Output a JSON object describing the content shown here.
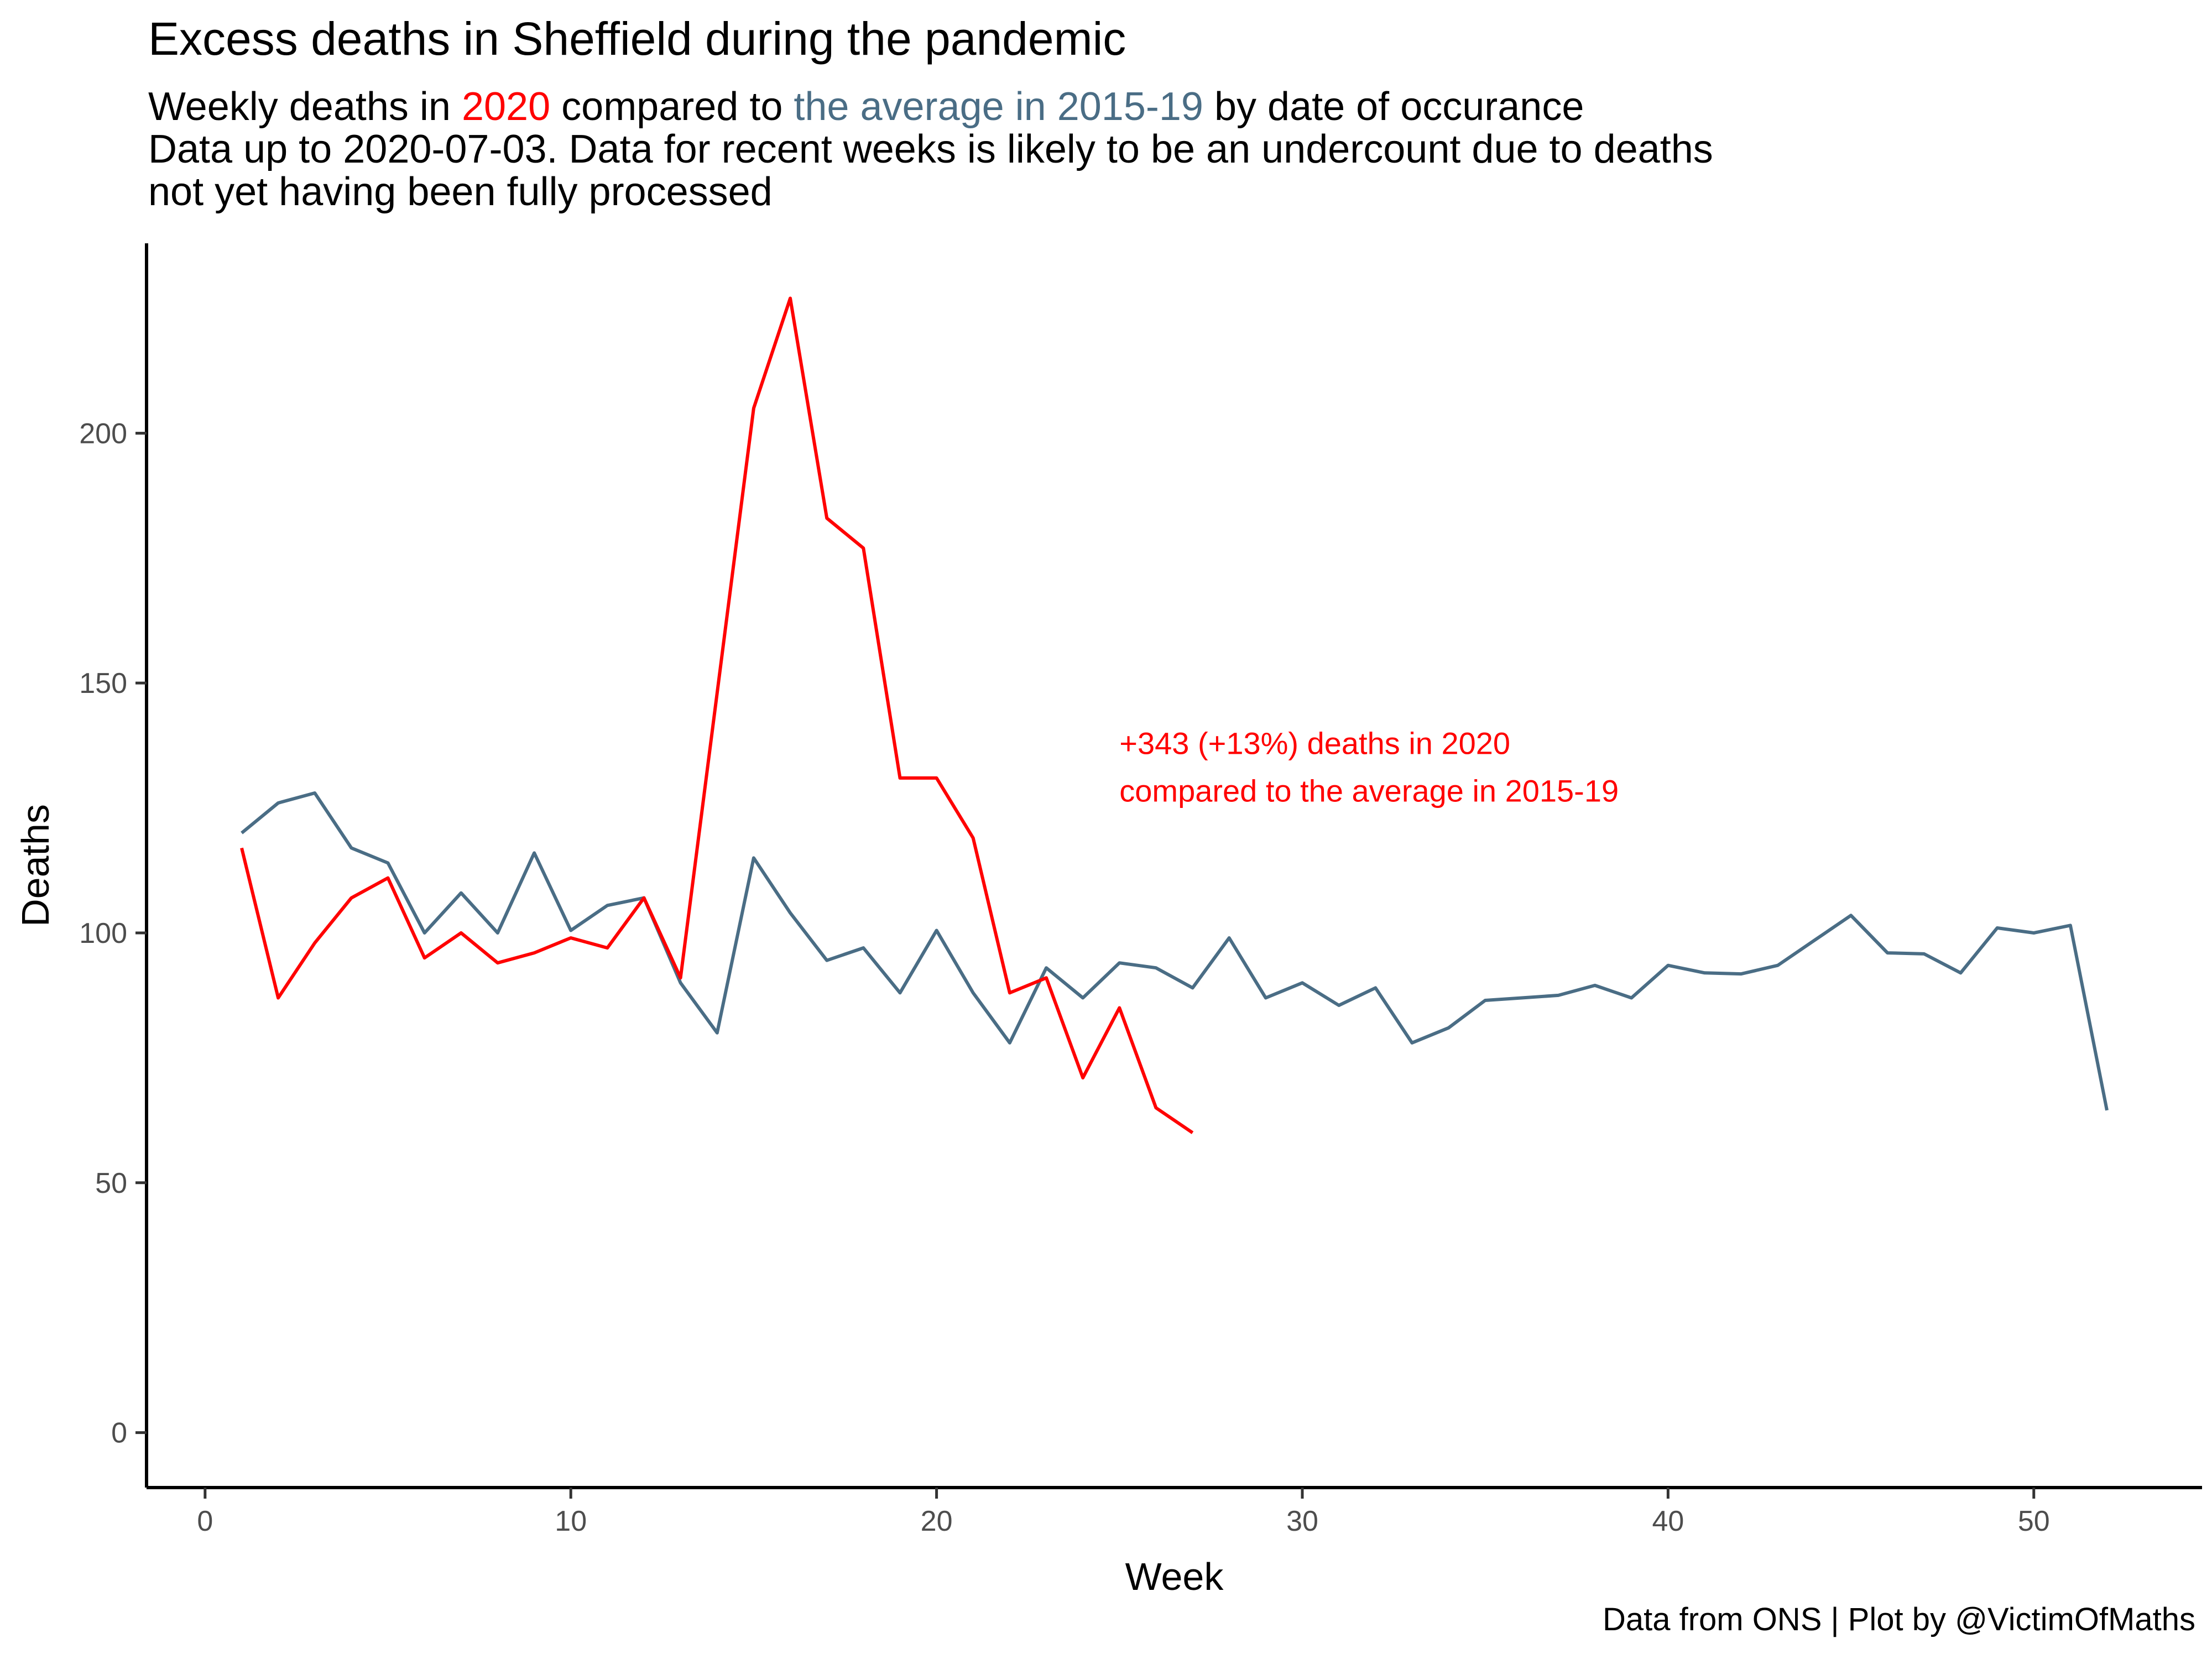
{
  "title": "Excess deaths in Sheffield during the pandemic",
  "subtitle": {
    "line1_prefix": "Weekly deaths in ",
    "line1_red": "2020",
    "line1_mid": " compared to ",
    "line1_blue": "the average in 2015-19",
    "line1_suffix": " by date of occurance",
    "line2": "Data up to 2020-07-03. Data for recent weeks is likely to be an undercount due to deaths",
    "line3": "not yet having been fully processed"
  },
  "caption": "Data from ONS | Plot by @VictimOfMaths",
  "colors": {
    "series_2020": "#ff0000",
    "series_average": "#4a6d85"
  },
  "chart_data": {
    "type": "line",
    "title": "Excess deaths in Sheffield during the pandemic",
    "xlabel": "Week",
    "ylabel": "Deaths",
    "xlim": [
      -1.6,
      54.6
    ],
    "ylim": [
      -11,
      238
    ],
    "x_ticks": [
      0,
      10,
      20,
      30,
      40,
      50
    ],
    "y_ticks": [
      0,
      50,
      100,
      150,
      200
    ],
    "grid": false,
    "annotation": {
      "line1": "+343 (+13%) deaths in 2020",
      "line2": "compared to the average in 2015-19",
      "x": 25,
      "y_line1": 138,
      "y_line2": 128.5
    },
    "series": [
      {
        "name": "the average in 2015-19",
        "color": "#4a6d85",
        "x": [
          1,
          2,
          3,
          4,
          5,
          6,
          7,
          8,
          9,
          10,
          11,
          12,
          13,
          14,
          15,
          16,
          17,
          18,
          19,
          20,
          21,
          22,
          23,
          24,
          25,
          26,
          27,
          28,
          29,
          30,
          31,
          32,
          33,
          34,
          35,
          36,
          37,
          38,
          39,
          40,
          41,
          42,
          43,
          44,
          45,
          46,
          47,
          48,
          49,
          50,
          51,
          52
        ],
        "values": [
          120,
          126,
          128,
          117,
          114,
          100,
          108,
          100,
          116,
          100.5,
          105.5,
          107,
          90,
          80,
          115,
          104,
          94.5,
          97,
          88,
          100.5,
          88,
          78,
          93,
          87,
          94,
          93,
          89,
          99,
          87,
          90,
          85.5,
          89,
          78,
          81,
          86.5,
          87,
          87.5,
          89.5,
          87,
          93.5,
          92,
          91.8,
          93.5,
          98.5,
          103.5,
          96,
          95.8,
          92,
          101,
          100,
          101.5,
          64.5
        ]
      },
      {
        "name": "2020",
        "color": "#ff0000",
        "x": [
          1,
          2,
          3,
          4,
          5,
          6,
          7,
          8,
          9,
          10,
          11,
          12,
          13,
          14,
          15,
          16,
          17,
          18,
          19,
          20,
          21,
          22,
          23,
          24,
          25,
          26,
          27
        ],
        "values": [
          117,
          87,
          98,
          107,
          111,
          95,
          100,
          94,
          96,
          99,
          97,
          107,
          91,
          148,
          205,
          227,
          183,
          177,
          131,
          131,
          119,
          88,
          91,
          71,
          85,
          65,
          60
        ]
      }
    ]
  }
}
